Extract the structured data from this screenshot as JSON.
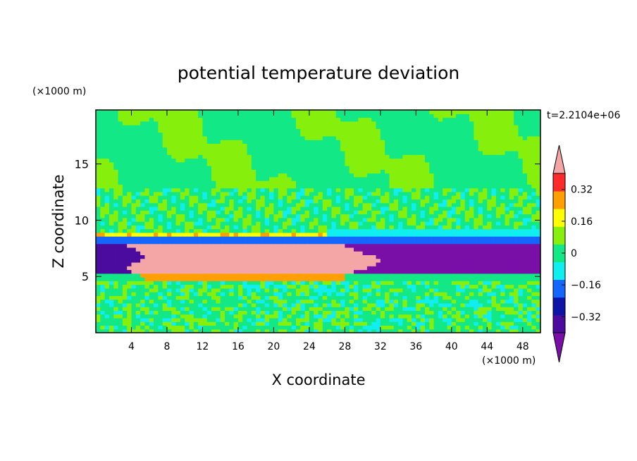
{
  "chart_data": {
    "type": "heatmap",
    "title": "potential temperature deviation",
    "xlabel": "X coordinate",
    "ylabel": "Z coordinate",
    "x_unit": "(×1000 m)",
    "y_unit": "(×1000 m)",
    "time_label": "t=2.2104e+06",
    "xlim": [
      0,
      50
    ],
    "ylim": [
      0,
      19.8
    ],
    "x_ticks": [
      4,
      8,
      12,
      16,
      20,
      24,
      28,
      32,
      36,
      40,
      44,
      48
    ],
    "y_ticks": [
      5,
      10,
      15
    ],
    "colorbar": {
      "levels": [
        -0.4,
        -0.32,
        -0.24,
        -0.16,
        -0.08,
        0,
        0.08,
        0.16,
        0.24,
        0.32,
        0.4
      ],
      "tick_labels": [
        "0.32",
        "0.16",
        "0",
        "−0.16",
        "−0.32"
      ],
      "tick_values": [
        0.32,
        0.16,
        0,
        -0.16,
        -0.32
      ],
      "colors": [
        "#7a0fa8",
        "#4b0b9e",
        "#0d14a8",
        "#1565ff",
        "#10eef0",
        "#12e886",
        "#86f00c",
        "#ffff00",
        "#ffa000",
        "#ff2a2a",
        "#f4a6a6"
      ],
      "extend": "both"
    },
    "regions": [
      {
        "name": "upper layer",
        "x": [
          0,
          50
        ],
        "z": [
          13,
          19.8
        ],
        "value": 0.05
      },
      {
        "name": "middle wavy layer",
        "x": [
          0,
          50
        ],
        "z": [
          8.6,
          13
        ],
        "value": 0.0
      },
      {
        "name": "cold pool top",
        "x": [
          0,
          50
        ],
        "z": [
          8,
          8.6
        ],
        "value": -0.2
      },
      {
        "name": "warm anomaly",
        "x": [
          5,
          30
        ],
        "z": [
          6.2,
          8
        ],
        "value": 0.38
      },
      {
        "name": "warm core",
        "x": [
          5,
          32
        ],
        "z": [
          5.3,
          6.2
        ],
        "value": 0.33
      },
      {
        "name": "cold anomaly",
        "x": [
          30,
          50
        ],
        "z": [
          5,
          8
        ],
        "value": -0.38
      },
      {
        "name": "lower turbulent layer",
        "x": [
          0,
          50
        ],
        "z": [
          0.3,
          4.6
        ],
        "value": 0.05
      }
    ]
  }
}
